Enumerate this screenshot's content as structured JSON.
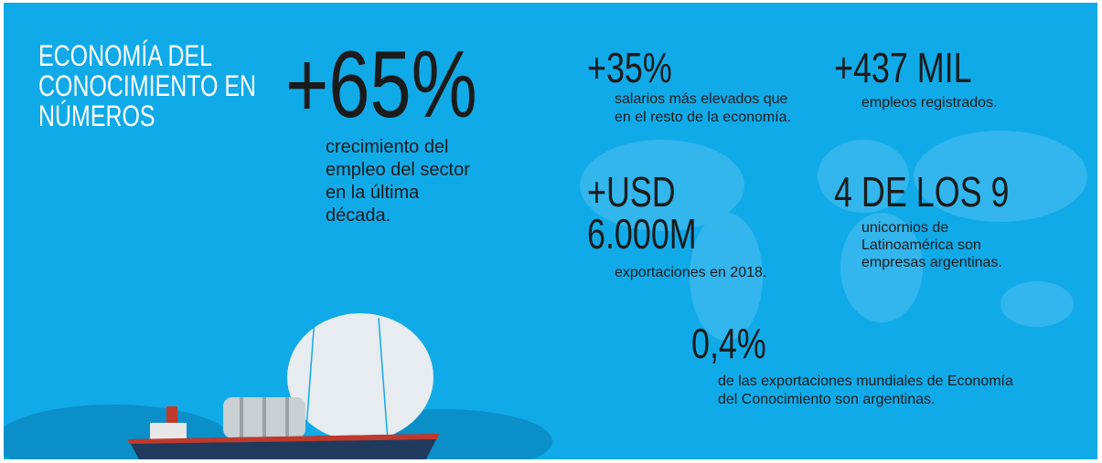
{
  "title": {
    "lines": [
      "ECONOMÍA DEL",
      "CONOCIMIENTO EN",
      "NÚMEROS"
    ]
  },
  "stats": [
    {
      "figure": [
        "+65%"
      ],
      "description": [
        "crecimiento del",
        "empleo del sector",
        "en la última",
        "década."
      ]
    },
    {
      "figure": [
        "+35%"
      ],
      "description": [
        "salarios más elevados que",
        "en el resto de la economía."
      ]
    },
    {
      "figure": [
        "+437 MIL"
      ],
      "description": [
        "empleos registrados."
      ]
    },
    {
      "figure": [
        "+USD",
        "6.000M"
      ],
      "description": [
        "exportaciones en 2018."
      ]
    },
    {
      "figure": [
        "4 DE LOS 9"
      ],
      "description": [
        "unicornios de",
        "Latinoamérica son",
        "empresas argentinas."
      ]
    },
    {
      "figure": [
        "0,4%"
      ],
      "description": [
        "de las exportaciones mundiales de Economía",
        "del Conocimiento son argentinas."
      ]
    }
  ]
}
